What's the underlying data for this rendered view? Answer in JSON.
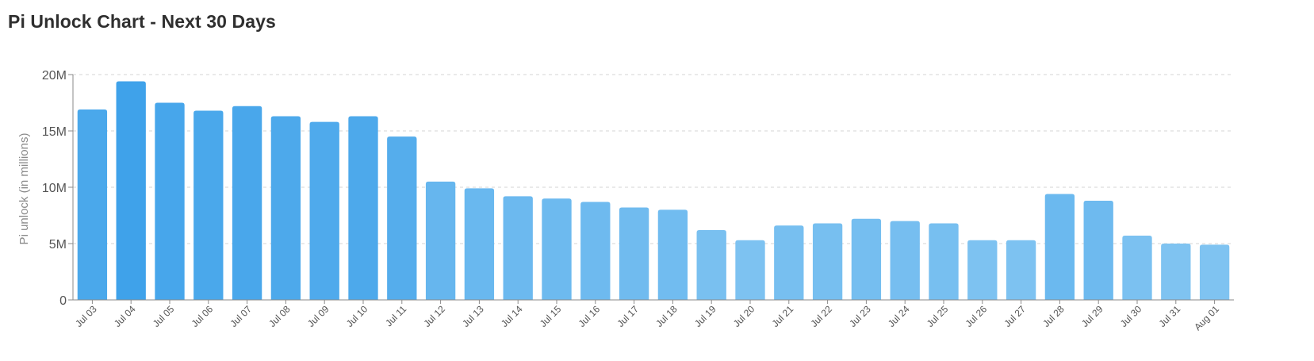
{
  "title": "Pi Unlock Chart - Next 30 Days",
  "chart_data": {
    "type": "bar",
    "title": "Pi Unlock Chart - Next 30 Days",
    "xlabel": "",
    "ylabel": "Pi unlock (in millions)",
    "ylim": [
      0,
      20
    ],
    "y_ticks": [
      0,
      5,
      10,
      15,
      20
    ],
    "y_tick_labels": [
      "0",
      "5M",
      "10M",
      "15M",
      "20M"
    ],
    "grid": true,
    "legend": "none",
    "categories": [
      "Jul 03",
      "Jul 04",
      "Jul 05",
      "Jul 06",
      "Jul 07",
      "Jul 08",
      "Jul 09",
      "Jul 10",
      "Jul 11",
      "Jul 12",
      "Jul 13",
      "Jul 14",
      "Jul 15",
      "Jul 16",
      "Jul 17",
      "Jul 18",
      "Jul 19",
      "Jul 20",
      "Jul 21",
      "Jul 22",
      "Jul 23",
      "Jul 24",
      "Jul 25",
      "Jul 26",
      "Jul 27",
      "Jul 28",
      "Jul 29",
      "Jul 30",
      "Jul 31",
      "Aug 01"
    ],
    "values": [
      16.9,
      19.4,
      17.5,
      16.8,
      17.2,
      16.3,
      15.8,
      16.3,
      14.5,
      10.5,
      9.9,
      9.2,
      9.0,
      8.7,
      8.2,
      8.0,
      6.2,
      5.3,
      6.6,
      6.8,
      7.2,
      7.0,
      6.8,
      5.3,
      5.3,
      9.4,
      8.8,
      5.7,
      5.0,
      4.9
    ],
    "colors": {
      "high": "#3fa2ea",
      "low": "#7fc3f1"
    }
  }
}
